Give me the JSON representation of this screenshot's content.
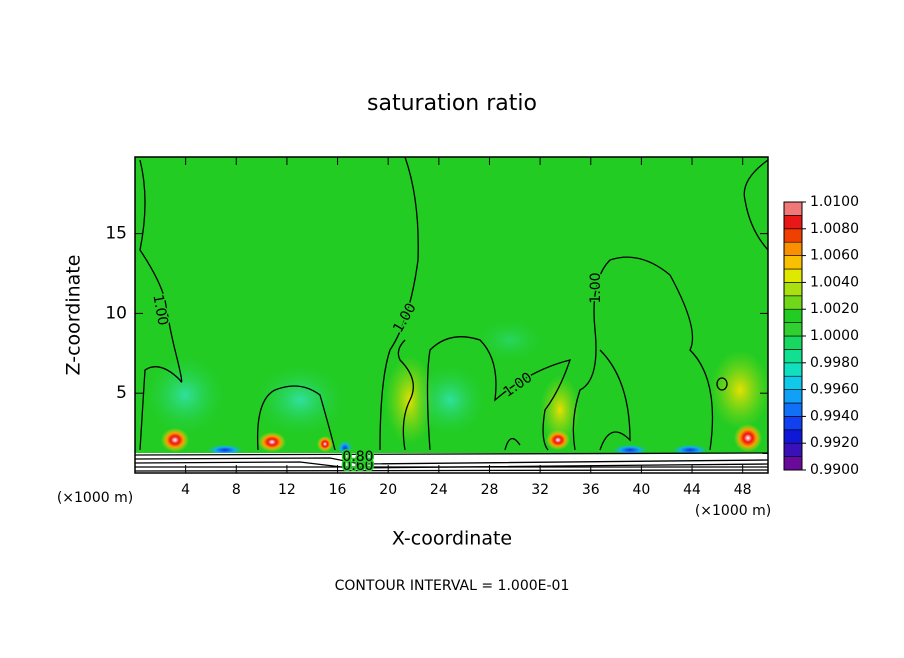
{
  "chart_data": {
    "type": "contour",
    "title": "saturation ratio",
    "x_label": "X-coordinate",
    "y_label": "Z-coordinate",
    "x_unit": "(×1000 m)",
    "y_unit": "(×1000 m)",
    "footer": "CONTOUR INTERVAL = 1.000E-01",
    "xlim": [
      0,
      50
    ],
    "xticks": [
      4,
      8,
      12,
      16,
      20,
      24,
      28,
      32,
      36,
      40,
      44,
      48
    ],
    "ylim": [
      0,
      19.8
    ],
    "yticks": [
      5,
      10,
      15
    ],
    "contour_labels": [
      "1.00",
      "1.00",
      "1.00",
      "1.00",
      "0.60",
      "0.80"
    ],
    "colorbar": {
      "lim": [
        0.99,
        1.01
      ],
      "ticks": [
        {
          "value": 0.99,
          "label": "0.9900"
        },
        {
          "value": 0.992,
          "label": "0.9920"
        },
        {
          "value": 0.994,
          "label": "0.9940"
        },
        {
          "value": 0.996,
          "label": "0.9960"
        },
        {
          "value": 0.998,
          "label": "0.9980"
        },
        {
          "value": 1.0,
          "label": "1.0000"
        },
        {
          "value": 1.002,
          "label": "1.0020"
        },
        {
          "value": 1.004,
          "label": "1.0040"
        },
        {
          "value": 1.006,
          "label": "1.0060"
        },
        {
          "value": 1.008,
          "label": "1.0080"
        },
        {
          "value": 1.01,
          "label": "1.0100"
        }
      ],
      "colors": [
        "#6a0a9a",
        "#3a10b8",
        "#1018d8",
        "#1040f0",
        "#1070f8",
        "#10a0f8",
        "#10c8e8",
        "#10e0c0",
        "#10e090",
        "#18d860",
        "#30d030",
        "#22cc22",
        "#70d818",
        "#a8e010",
        "#e0e800",
        "#f8c000",
        "#f89000",
        "#f04000",
        "#e81818",
        "#f07878"
      ]
    }
  }
}
